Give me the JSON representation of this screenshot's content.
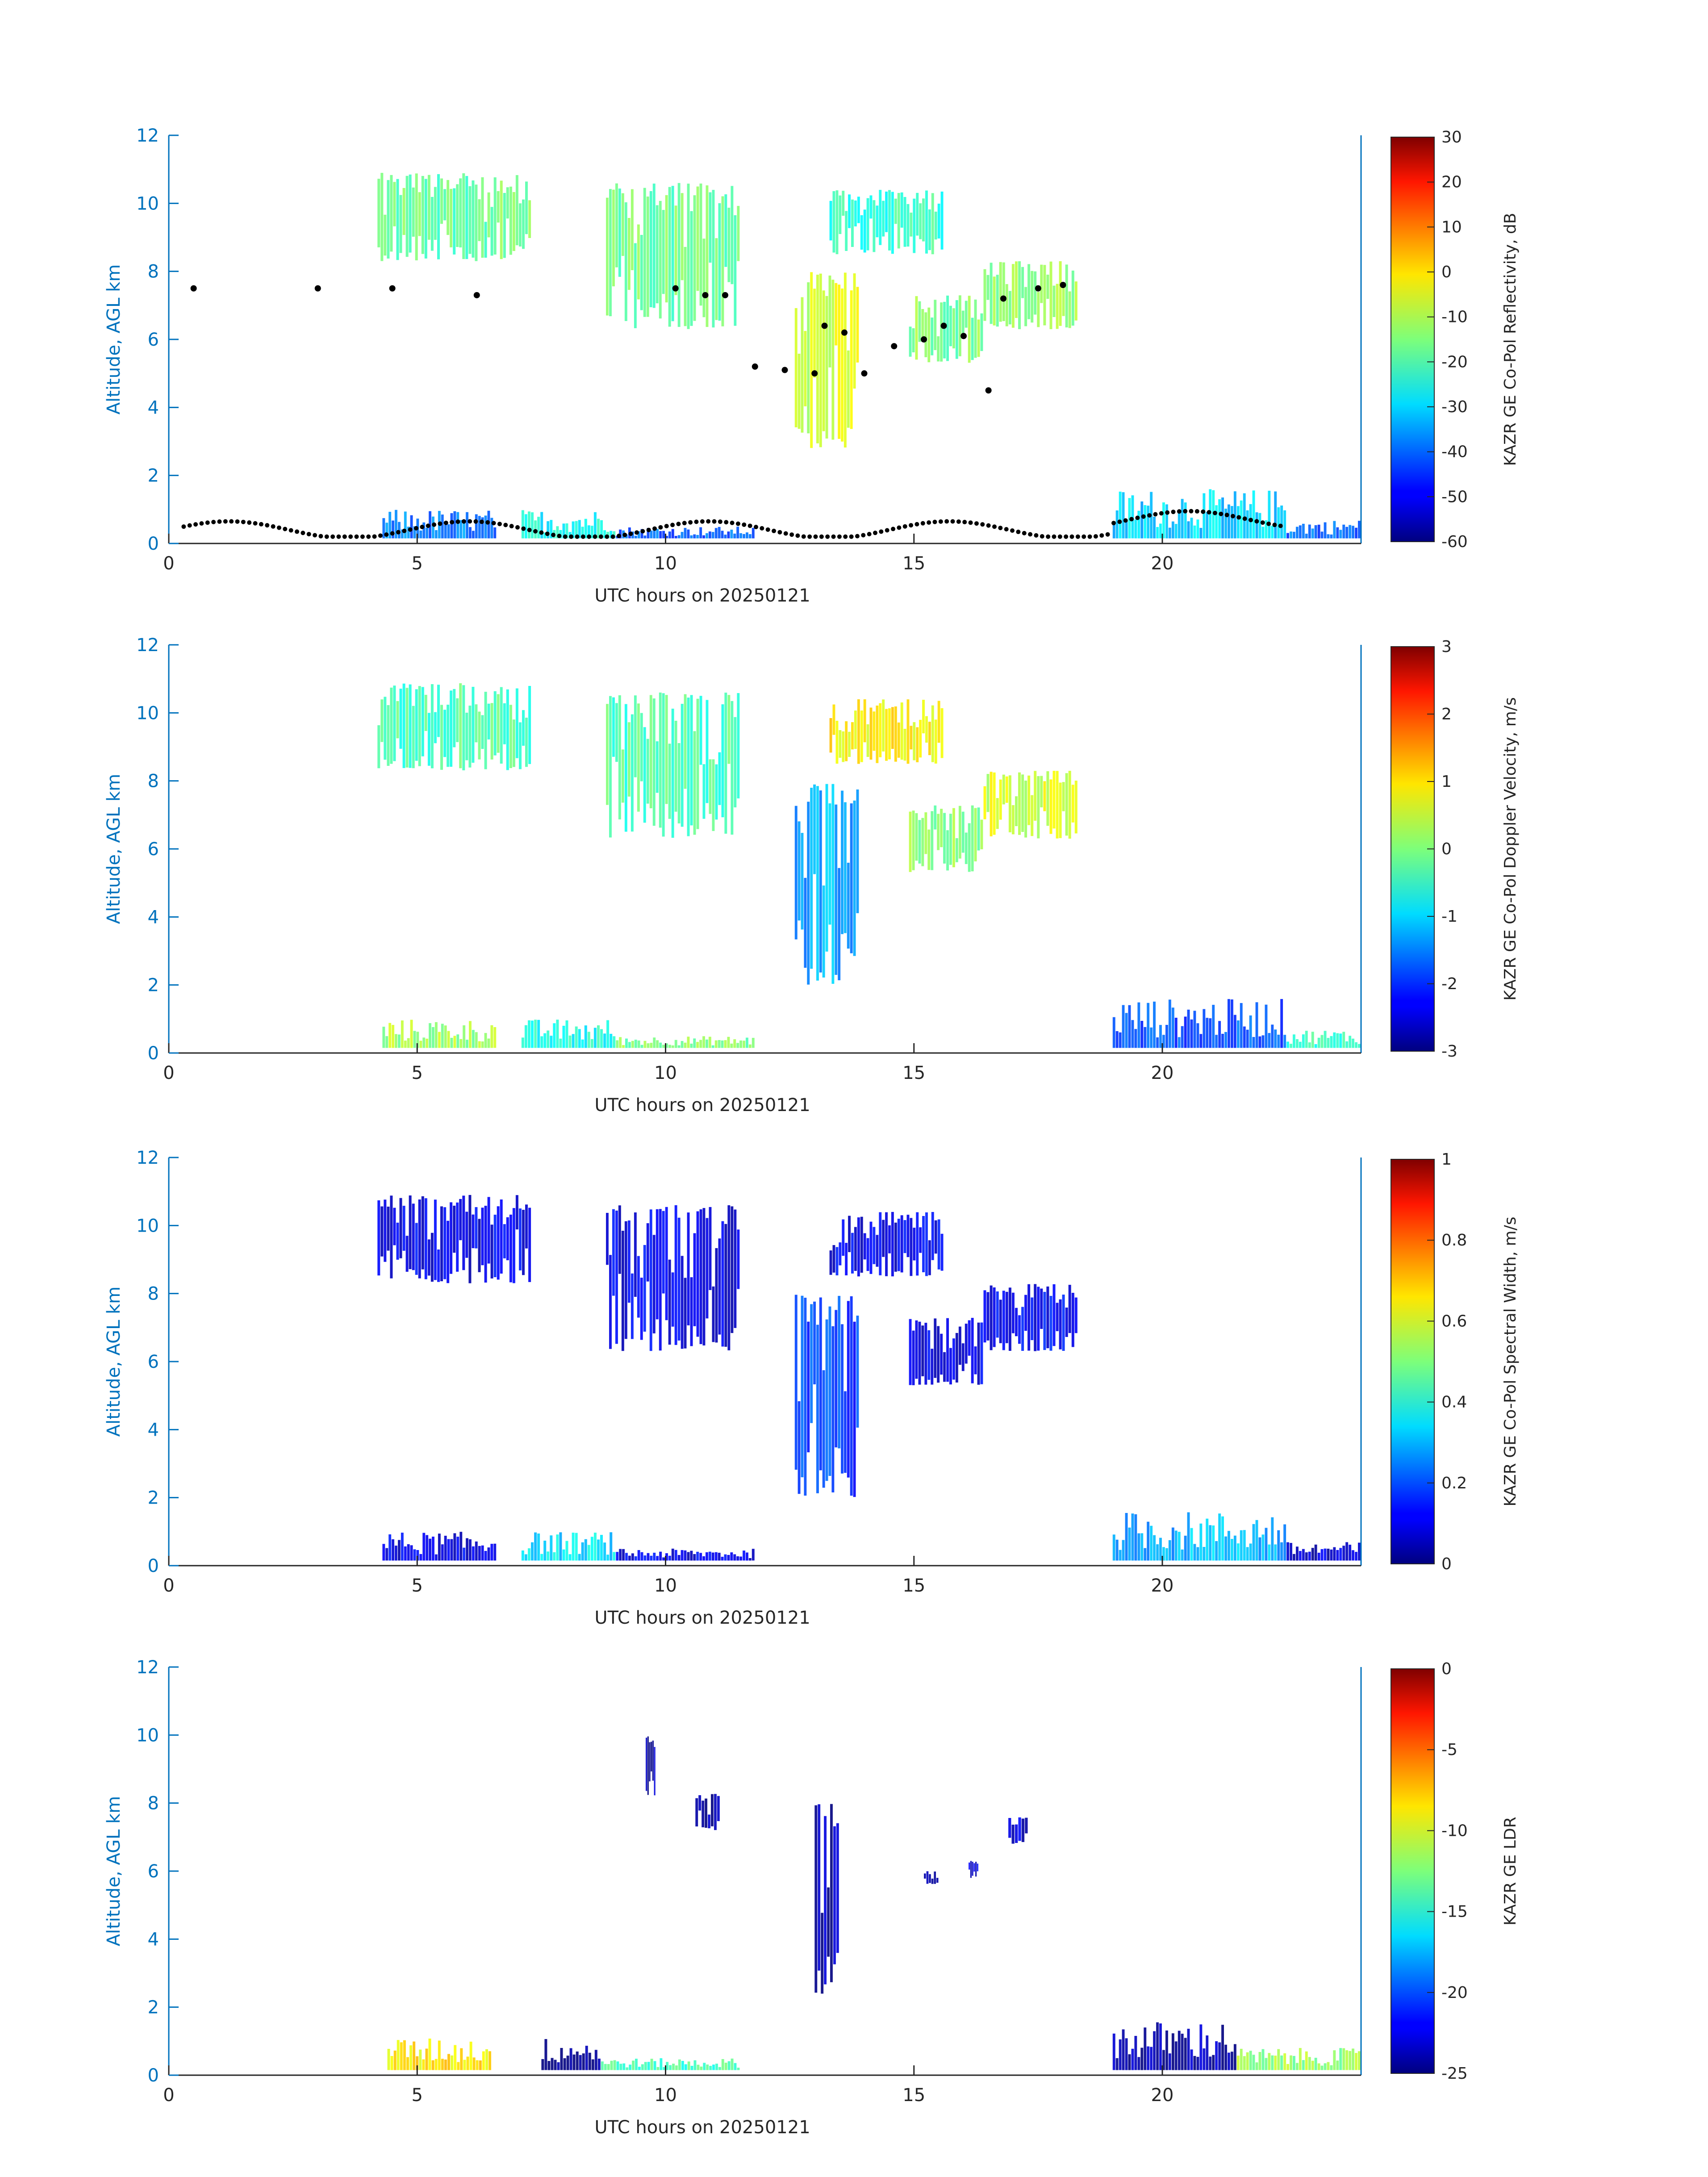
{
  "figure": {
    "panels": [
      {
        "id": "reflectivity",
        "ylabel": "Altitude, AGL km",
        "xlabel": "UTC hours on 20250121",
        "x_ticks": [
          "0",
          "5",
          "10",
          "15",
          "20"
        ],
        "y_ticks": [
          "0",
          "2",
          "4",
          "6",
          "8",
          "10",
          "12"
        ],
        "colorbar": {
          "label": "KAZR GE Co-Pol Reflectivity, dB",
          "ticks": [
            "-60",
            "-50",
            "-40",
            "-30",
            "-20",
            "-10",
            "0",
            "10",
            "20",
            "30"
          ],
          "range": [
            -60,
            30
          ]
        }
      },
      {
        "id": "doppler-velocity",
        "ylabel": "Altitude, AGL km",
        "xlabel": "UTC hours on 20250121",
        "x_ticks": [
          "0",
          "5",
          "10",
          "15",
          "20"
        ],
        "y_ticks": [
          "0",
          "2",
          "4",
          "6",
          "8",
          "10",
          "12"
        ],
        "colorbar": {
          "label": "KAZR GE Co-Pol Doppler Velocity, m/s",
          "ticks": [
            "-3",
            "-2",
            "-1",
            "0",
            "1",
            "2",
            "3"
          ],
          "range": [
            -3,
            3
          ]
        }
      },
      {
        "id": "spectral-width",
        "ylabel": "Altitude, AGL km",
        "xlabel": "UTC hours on 20250121",
        "x_ticks": [
          "0",
          "5",
          "10",
          "15",
          "20"
        ],
        "y_ticks": [
          "0",
          "2",
          "4",
          "6",
          "8",
          "10",
          "12"
        ],
        "colorbar": {
          "label": "KAZR GE Co-Pol Spectral Width, m/s",
          "ticks": [
            "0",
            "0.2",
            "0.4",
            "0.6",
            "0.8",
            "1"
          ],
          "range": [
            0,
            1
          ]
        }
      },
      {
        "id": "ldr",
        "ylabel": "Altitude, AGL km",
        "xlabel": "UTC hours on 20250121",
        "x_ticks": [
          "0",
          "5",
          "10",
          "15",
          "20"
        ],
        "y_ticks": [
          "0",
          "2",
          "4",
          "6",
          "8",
          "10",
          "12"
        ],
        "colorbar": {
          "label": "KAZR GE LDR",
          "ticks": [
            "-25",
            "-20",
            "-15",
            "-10",
            "-5",
            "0"
          ],
          "range": [
            -25,
            0
          ]
        }
      }
    ]
  },
  "chart_data": [
    {
      "type": "heatmap",
      "title": "",
      "xlabel": "UTC hours on 20250121",
      "ylabel": "Altitude, AGL km",
      "xlim": [
        0,
        24
      ],
      "ylim": [
        0,
        12
      ],
      "colorbar_label": "KAZR GE Co-Pol Reflectivity, dB",
      "clim": [
        -60,
        30
      ],
      "colormap": "jet",
      "echoes": [
        {
          "t": [
            4.2,
            7.3
          ],
          "z": [
            8.3,
            10.9
          ],
          "value": -17
        },
        {
          "t": [
            8.8,
            11.5
          ],
          "z": [
            6.3,
            10.6
          ],
          "value": -17
        },
        {
          "t": [
            12.6,
            13.9
          ],
          "z": [
            2.8,
            8.0
          ],
          "value": -8
        },
        {
          "t": [
            13.3,
            15.6
          ],
          "z": [
            8.5,
            10.4
          ],
          "value": -22
        },
        {
          "t": [
            14.9,
            16.4
          ],
          "z": [
            5.3,
            7.3
          ],
          "value": -15
        },
        {
          "t": [
            16.4,
            18.3
          ],
          "z": [
            6.3,
            8.3
          ],
          "value": -14
        },
        {
          "t": [
            4.3,
            6.6
          ],
          "z": [
            0.15,
            1.0
          ],
          "value": -38
        },
        {
          "t": [
            7.1,
            9.0
          ],
          "z": [
            0.15,
            1.0
          ],
          "value": -25
        },
        {
          "t": [
            9.0,
            11.8
          ],
          "z": [
            0.15,
            0.5
          ],
          "value": -40
        },
        {
          "t": [
            19.0,
            22.5
          ],
          "z": [
            0.15,
            1.6
          ],
          "value": -30
        },
        {
          "t": [
            22.5,
            24.0
          ],
          "z": [
            0.15,
            0.7
          ],
          "value": -40
        }
      ],
      "overlay_points": [
        {
          "t": 0.5,
          "z": 7.5
        },
        {
          "t": 3.0,
          "z": 7.5
        },
        {
          "t": 4.5,
          "z": 7.5
        },
        {
          "t": 6.2,
          "z": 7.3
        },
        {
          "t": 10.2,
          "z": 7.5
        },
        {
          "t": 10.8,
          "z": 7.3
        },
        {
          "t": 11.2,
          "z": 7.3
        },
        {
          "t": 11.8,
          "z": 5.2
        },
        {
          "t": 12.4,
          "z": 5.1
        },
        {
          "t": 13.0,
          "z": 5.0
        },
        {
          "t": 13.2,
          "z": 6.4
        },
        {
          "t": 13.6,
          "z": 6.2
        },
        {
          "t": 14.0,
          "z": 5.0
        },
        {
          "t": 14.6,
          "z": 5.8
        },
        {
          "t": 15.2,
          "z": 6.0
        },
        {
          "t": 15.6,
          "z": 6.4
        },
        {
          "t": 16.0,
          "z": 6.1
        },
        {
          "t": 16.5,
          "z": 4.5
        },
        {
          "t": 16.8,
          "z": 7.2
        },
        {
          "t": 17.5,
          "z": 7.5
        },
        {
          "t": 18.0,
          "z": 7.6
        }
      ]
    },
    {
      "type": "heatmap",
      "title": "",
      "xlabel": "UTC hours on 20250121",
      "ylabel": "Altitude, AGL km",
      "xlim": [
        0,
        24
      ],
      "ylim": [
        0,
        12
      ],
      "colorbar_label": "KAZR GE Co-Pol Doppler Velocity, m/s",
      "clim": [
        -3,
        3
      ],
      "colormap": "jet",
      "echoes": [
        {
          "t": [
            4.2,
            7.3
          ],
          "z": [
            8.3,
            10.9
          ],
          "value": -0.3
        },
        {
          "t": [
            8.8,
            11.5
          ],
          "z": [
            6.3,
            10.6
          ],
          "value": -0.3
        },
        {
          "t": [
            12.6,
            13.9
          ],
          "z": [
            2.0,
            8.0
          ],
          "value": -1.3
        },
        {
          "t": [
            13.3,
            15.6
          ],
          "z": [
            8.5,
            10.4
          ],
          "value": 0.8
        },
        {
          "t": [
            14.9,
            16.4
          ],
          "z": [
            5.3,
            7.3
          ],
          "value": 0.0
        },
        {
          "t": [
            16.4,
            18.3
          ],
          "z": [
            6.3,
            8.3
          ],
          "value": 0.5
        },
        {
          "t": [
            4.3,
            6.6
          ],
          "z": [
            0.15,
            1.0
          ],
          "value": 0.2
        },
        {
          "t": [
            7.1,
            9.0
          ],
          "z": [
            0.15,
            1.0
          ],
          "value": -0.6
        },
        {
          "t": [
            9.0,
            11.8
          ],
          "z": [
            0.15,
            0.5
          ],
          "value": 0.0
        },
        {
          "t": [
            19.0,
            22.5
          ],
          "z": [
            0.15,
            1.6
          ],
          "value": -1.8
        },
        {
          "t": [
            22.5,
            24.0
          ],
          "z": [
            0.15,
            0.7
          ],
          "value": -0.5
        }
      ]
    },
    {
      "type": "heatmap",
      "title": "",
      "xlabel": "UTC hours on 20250121",
      "ylabel": "Altitude, AGL km",
      "xlim": [
        0,
        24
      ],
      "ylim": [
        0,
        12
      ],
      "colorbar_label": "KAZR GE Co-Pol Spectral Width, m/s",
      "clim": [
        0,
        1
      ],
      "colormap": "jet",
      "echoes": [
        {
          "t": [
            4.2,
            7.3
          ],
          "z": [
            8.3,
            10.9
          ],
          "value": 0.1
        },
        {
          "t": [
            8.8,
            11.5
          ],
          "z": [
            6.3,
            10.6
          ],
          "value": 0.1
        },
        {
          "t": [
            12.6,
            13.9
          ],
          "z": [
            2.0,
            8.0
          ],
          "value": 0.18
        },
        {
          "t": [
            13.3,
            15.6
          ],
          "z": [
            8.5,
            10.4
          ],
          "value": 0.1
        },
        {
          "t": [
            14.9,
            16.4
          ],
          "z": [
            5.3,
            7.3
          ],
          "value": 0.1
        },
        {
          "t": [
            16.4,
            18.3
          ],
          "z": [
            6.3,
            8.3
          ],
          "value": 0.12
        },
        {
          "t": [
            4.3,
            6.6
          ],
          "z": [
            0.15,
            1.0
          ],
          "value": 0.1
        },
        {
          "t": [
            7.1,
            9.0
          ],
          "z": [
            0.15,
            1.0
          ],
          "value": 0.35
        },
        {
          "t": [
            9.0,
            11.8
          ],
          "z": [
            0.15,
            0.5
          ],
          "value": 0.1
        },
        {
          "t": [
            19.0,
            22.5
          ],
          "z": [
            0.15,
            1.6
          ],
          "value": 0.3
        },
        {
          "t": [
            22.5,
            24.0
          ],
          "z": [
            0.15,
            0.7
          ],
          "value": 0.08
        }
      ]
    },
    {
      "type": "heatmap",
      "title": "",
      "xlabel": "UTC hours on 20250121",
      "ylabel": "Altitude, AGL km",
      "xlim": [
        0,
        24
      ],
      "ylim": [
        0,
        12
      ],
      "colorbar_label": "KAZR GE LDR",
      "clim": [
        -25,
        0
      ],
      "colormap": "jet",
      "echoes": [
        {
          "t": [
            9.6,
            9.8
          ],
          "z": [
            8.2,
            10.0
          ],
          "value": -24
        },
        {
          "t": [
            10.6,
            11.1
          ],
          "z": [
            7.2,
            8.3
          ],
          "value": -24
        },
        {
          "t": [
            13.0,
            13.5
          ],
          "z": [
            2.2,
            8.0
          ],
          "value": -24
        },
        {
          "t": [
            15.2,
            15.5
          ],
          "z": [
            5.6,
            6.0
          ],
          "value": -23
        },
        {
          "t": [
            16.1,
            16.3
          ],
          "z": [
            5.8,
            6.3
          ],
          "value": -23
        },
        {
          "t": [
            16.9,
            17.3
          ],
          "z": [
            6.8,
            7.6
          ],
          "value": -23
        },
        {
          "t": [
            4.4,
            6.5
          ],
          "z": [
            0.15,
            1.1
          ],
          "value": -9
        },
        {
          "t": [
            7.5,
            8.7
          ],
          "z": [
            0.15,
            1.1
          ],
          "value": -25
        },
        {
          "t": [
            8.7,
            11.5
          ],
          "z": [
            0.15,
            0.5
          ],
          "value": -14
        },
        {
          "t": [
            19.0,
            21.5
          ],
          "z": [
            0.15,
            1.6
          ],
          "value": -24
        },
        {
          "t": [
            21.5,
            24.0
          ],
          "z": [
            0.15,
            0.8
          ],
          "value": -12
        }
      ]
    }
  ]
}
